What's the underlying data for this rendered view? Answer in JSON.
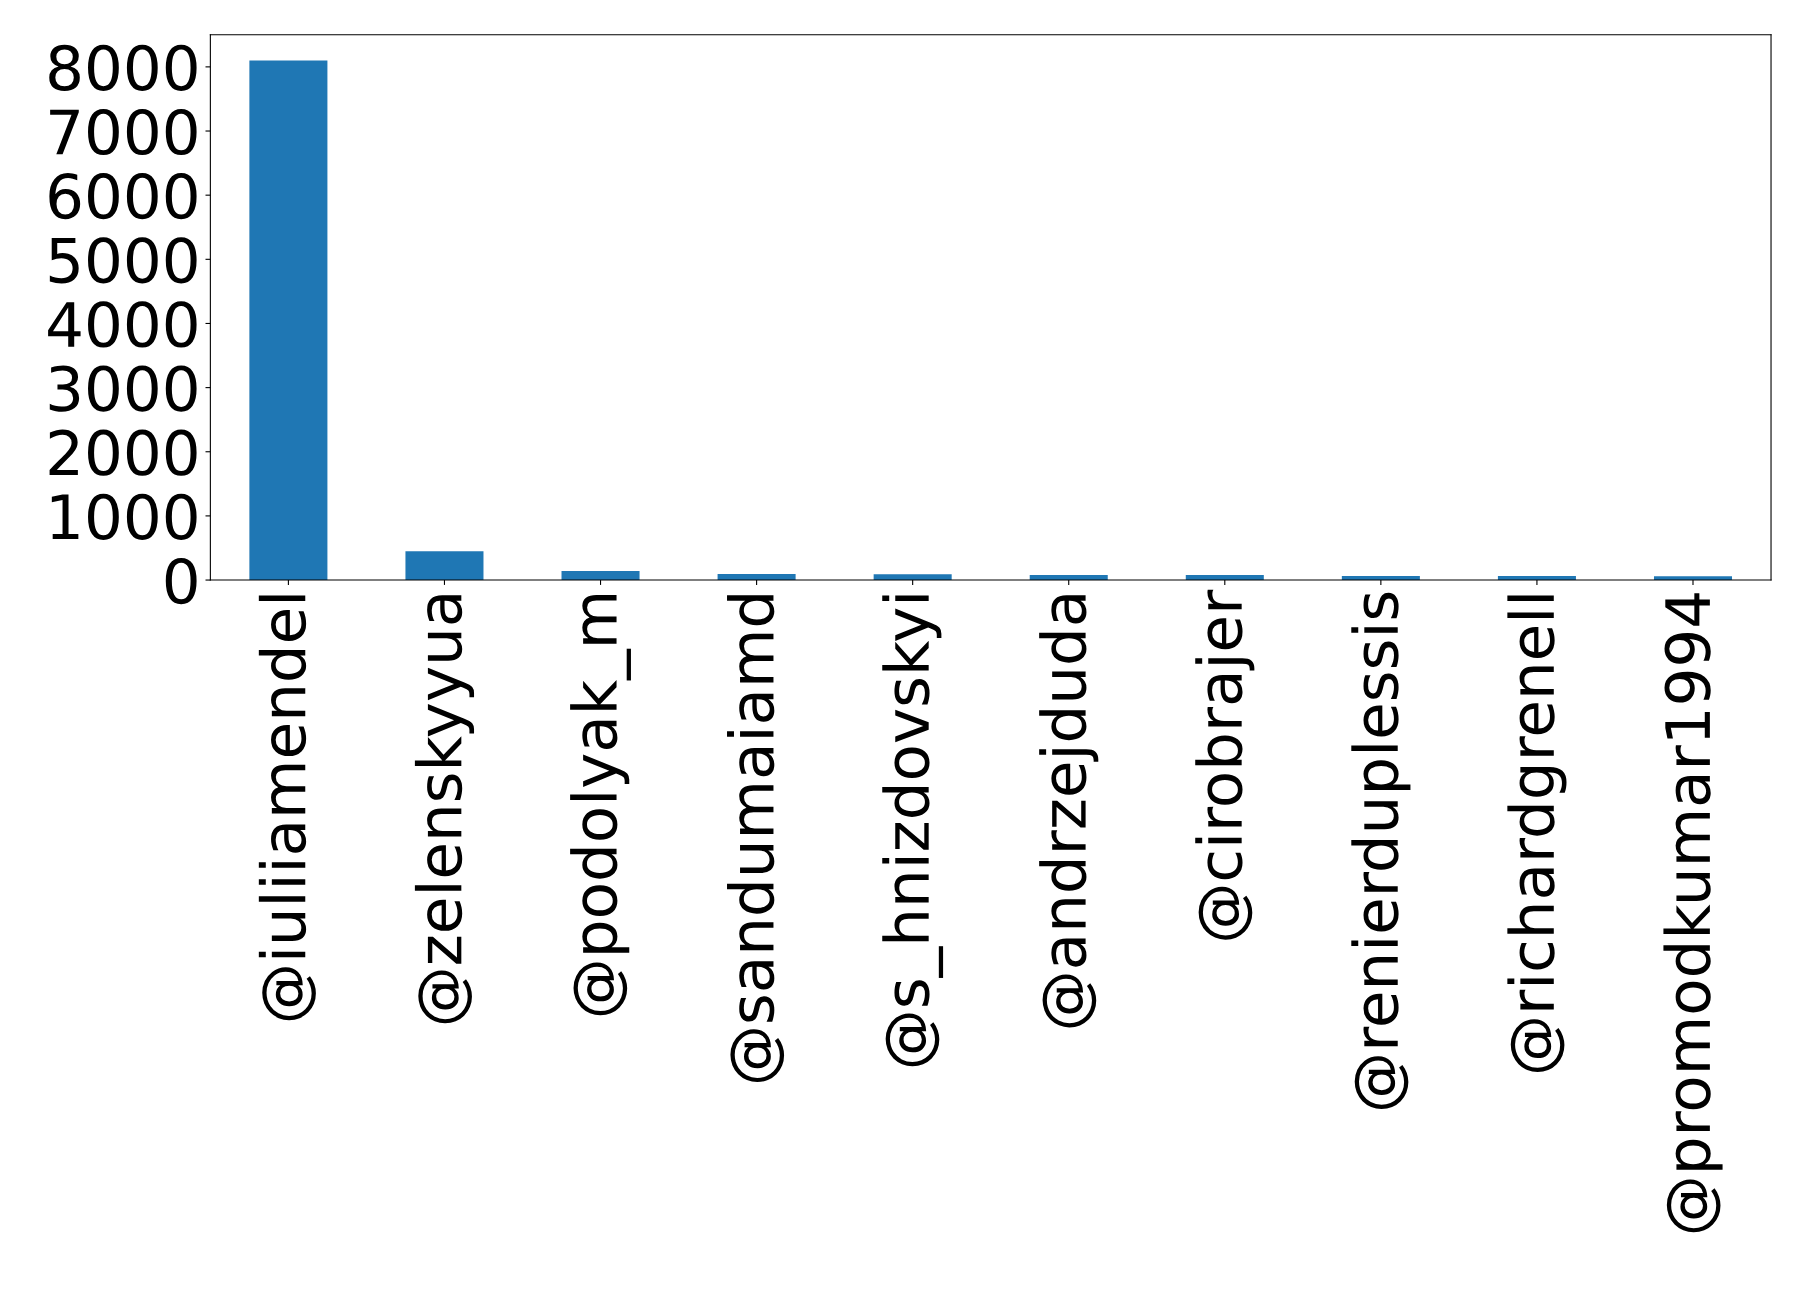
{
  "chart_data": {
    "type": "bar",
    "categories": [
      "@iuliiamendel",
      "@zelenskyyua",
      "@podolyak_m",
      "@sandumaiamd",
      "@s_hnizdovskyi",
      "@andrzejduda",
      "@cirobrajer",
      "@renierduplessis",
      "@richardgrenell",
      "@promodkumar1994"
    ],
    "values": [
      8100,
      450,
      140,
      95,
      90,
      80,
      80,
      65,
      65,
      60
    ],
    "color": "#1f77b4",
    "ylim": [
      0,
      8500
    ],
    "yticks": [
      0,
      1000,
      2000,
      3000,
      4000,
      5000,
      6000,
      7000,
      8000
    ],
    "grid": false
  }
}
